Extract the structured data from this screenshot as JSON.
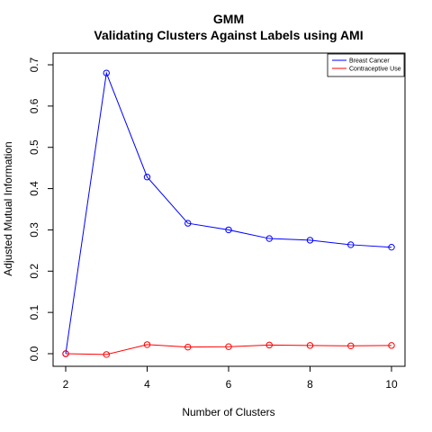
{
  "chart_data": {
    "type": "line",
    "title": "GMM",
    "subtitle": "Validating Clusters Against Labels using AMI",
    "xlabel": "Number of Clusters",
    "ylabel": "Adjusted Mutual Information",
    "x": [
      2,
      3,
      4,
      5,
      6,
      7,
      8,
      9,
      10
    ],
    "xlim": [
      2,
      10
    ],
    "ylim": [
      0,
      0.7
    ],
    "xticks": [
      2,
      4,
      6,
      8,
      10
    ],
    "yticks": [
      0.0,
      0.1,
      0.2,
      0.3,
      0.4,
      0.5,
      0.6,
      0.7
    ],
    "ytick_labels": [
      "0.0",
      "0.1",
      "0.2",
      "0.3",
      "0.4",
      "0.5",
      "0.6",
      "0.7"
    ],
    "grid": false,
    "legend_position": "top-right",
    "series": [
      {
        "name": "Breast Cancer",
        "color": "#0000ff",
        "values": [
          0.0,
          0.68,
          0.428,
          0.316,
          0.3,
          0.279,
          0.275,
          0.264,
          0.258
        ]
      },
      {
        "name": "Contraceptive Use",
        "color": "#ff0000",
        "values": [
          0.0,
          -0.002,
          0.022,
          0.016,
          0.017,
          0.021,
          0.02,
          0.019,
          0.02
        ]
      }
    ]
  }
}
